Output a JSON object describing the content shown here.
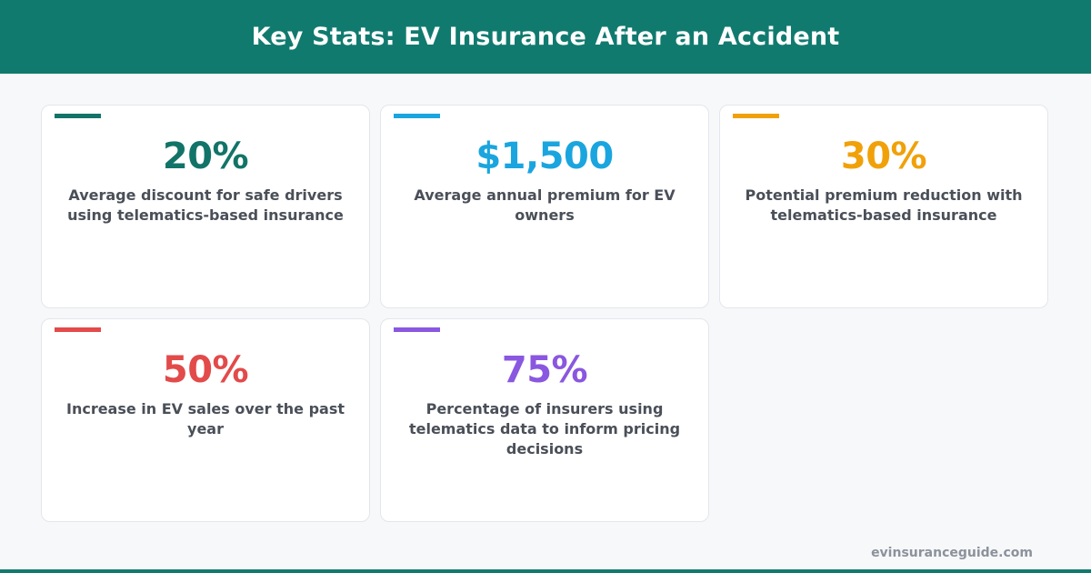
{
  "title": "Key Stats: EV Insurance After an Accident",
  "colors": {
    "header_bg": "#117a6f",
    "teal": "#127468",
    "blue": "#1aa5df",
    "orange": "#f0a10a",
    "red": "#e34a4a",
    "purple": "#8a57e0"
  },
  "stats": [
    {
      "value": "20%",
      "description": "Average discount for safe drivers using telematics-based insurance",
      "color": "#127468"
    },
    {
      "value": "$1,500",
      "description": "Average annual premium for EV owners",
      "color": "#1aa5df"
    },
    {
      "value": "30%",
      "description": "Potential premium reduction with telematics-based insurance",
      "color": "#f0a10a"
    },
    {
      "value": "50%",
      "description": "Increase in EV sales over the past year",
      "color": "#e34a4a"
    },
    {
      "value": "75%",
      "description": "Percentage of insurers using telematics data to inform pricing decisions",
      "color": "#8a57e0"
    }
  ],
  "footer": {
    "site": "evinsuranceguide.com"
  }
}
